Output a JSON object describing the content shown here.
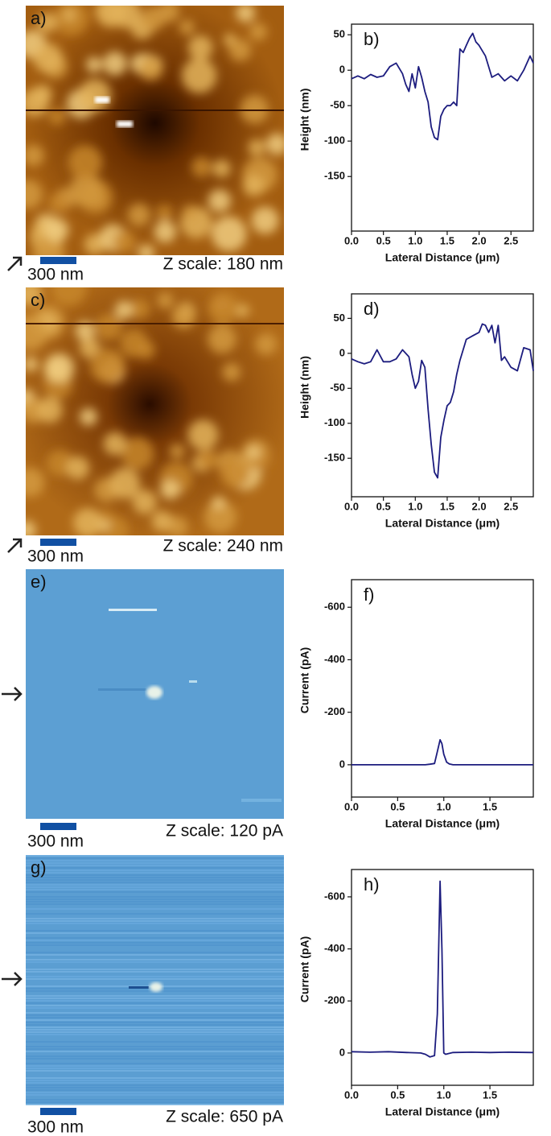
{
  "images": [
    {
      "label": "a)",
      "scale_bar": "300 nm",
      "z_scale": "Z scale: 180 nm"
    },
    {
      "label": "c)",
      "scale_bar": "300 nm",
      "z_scale": "Z scale: 240 nm"
    },
    {
      "label": "e)",
      "scale_bar": "300 nm",
      "z_scale": "Z scale: 120 pA"
    },
    {
      "label": "g)",
      "scale_bar": "300 nm",
      "z_scale": "Z scale: 650 pA"
    }
  ],
  "chart_data": [
    {
      "type": "line",
      "label": "b)",
      "xlabel": "Lateral Distance (μm)",
      "ylabel": "Height (nm)",
      "color": "#1c1c7e",
      "x": [
        0,
        0.1,
        0.2,
        0.3,
        0.4,
        0.5,
        0.6,
        0.7,
        0.8,
        0.85,
        0.9,
        0.95,
        1.0,
        1.05,
        1.1,
        1.15,
        1.2,
        1.25,
        1.3,
        1.35,
        1.4,
        1.45,
        1.5,
        1.55,
        1.6,
        1.65,
        1.7,
        1.75,
        1.8,
        1.85,
        1.9,
        1.95,
        2.0,
        2.1,
        2.2,
        2.3,
        2.4,
        2.5,
        2.6,
        2.7,
        2.8,
        2.85
      ],
      "values": [
        -12,
        -8,
        -12,
        -6,
        -10,
        -8,
        5,
        10,
        -5,
        -20,
        -30,
        -5,
        -25,
        5,
        -10,
        -30,
        -45,
        -80,
        -95,
        -98,
        -65,
        -55,
        -50,
        -50,
        -45,
        -50,
        30,
        25,
        35,
        45,
        52,
        40,
        35,
        20,
        -10,
        -5,
        -15,
        -8,
        -15,
        0,
        20,
        10
      ],
      "xlim": [
        0,
        2.85
      ],
      "ylim": [
        -227,
        65
      ],
      "xticks": [
        {
          "value": 0,
          "label": "0.0"
        },
        0.5,
        {
          "value": 1,
          "label": "1.0"
        },
        1.5,
        {
          "value": 2,
          "label": "2.0"
        },
        2.5
      ],
      "yticks": [
        50,
        0,
        -50,
        -100,
        -150
      ]
    },
    {
      "type": "line",
      "label": "d)",
      "xlabel": "Lateral Distance (μm)",
      "ylabel": "Height (nm)",
      "color": "#1c1c7e",
      "x": [
        0,
        0.1,
        0.2,
        0.3,
        0.4,
        0.5,
        0.6,
        0.7,
        0.8,
        0.9,
        0.95,
        1.0,
        1.05,
        1.1,
        1.15,
        1.2,
        1.25,
        1.3,
        1.35,
        1.4,
        1.45,
        1.5,
        1.55,
        1.6,
        1.65,
        1.7,
        1.8,
        1.9,
        2.0,
        2.05,
        2.1,
        2.15,
        2.2,
        2.25,
        2.3,
        2.35,
        2.4,
        2.5,
        2.6,
        2.7,
        2.8,
        2.85
      ],
      "values": [
        -8,
        -12,
        -15,
        -12,
        5,
        -12,
        -12,
        -8,
        5,
        -5,
        -30,
        -50,
        -40,
        -10,
        -20,
        -80,
        -130,
        -170,
        -178,
        -120,
        -95,
        -75,
        -70,
        -55,
        -30,
        -10,
        20,
        25,
        30,
        42,
        40,
        30,
        40,
        15,
        40,
        -10,
        -5,
        -20,
        -25,
        8,
        5,
        -25
      ],
      "xlim": [
        0,
        2.85
      ],
      "ylim": [
        -205,
        85
      ],
      "xticks": [
        {
          "value": 0,
          "label": "0.0"
        },
        0.5,
        {
          "value": 1,
          "label": "1.0"
        },
        1.5,
        {
          "value": 2,
          "label": "2.0"
        },
        2.5
      ],
      "yticks": [
        50,
        0,
        -50,
        -100,
        -150
      ]
    },
    {
      "type": "line",
      "label": "f)",
      "xlabel": "Lateral Distance (μm)",
      "ylabel": "Current (pA)",
      "color": "#1c1c7e",
      "x": [
        0,
        0.2,
        0.4,
        0.6,
        0.8,
        0.85,
        0.9,
        0.93,
        0.96,
        0.98,
        1.0,
        1.03,
        1.06,
        1.1,
        1.2,
        1.4,
        1.6,
        1.8,
        1.97
      ],
      "values": [
        0,
        0,
        0,
        0,
        0,
        -2,
        -5,
        -50,
        -95,
        -80,
        -40,
        -10,
        -3,
        0,
        0,
        0,
        0,
        0,
        0
      ],
      "xlim": [
        0,
        1.97
      ],
      "ylim": [
        123,
        -705
      ],
      "xticks": [
        {
          "value": 0,
          "label": "0.0"
        },
        0.5,
        {
          "value": 1,
          "label": "1.0"
        },
        1.5
      ],
      "yticks": [
        -600,
        -400,
        -200,
        0
      ]
    },
    {
      "type": "line",
      "label": "h)",
      "xlabel": "Lateral Distance (μm)",
      "ylabel": "Current (pA)",
      "color": "#1c1c7e",
      "x": [
        0,
        0.2,
        0.4,
        0.6,
        0.75,
        0.8,
        0.85,
        0.9,
        0.93,
        0.96,
        0.98,
        1.0,
        1.02,
        1.05,
        1.1,
        1.3,
        1.5,
        1.7,
        1.97
      ],
      "values": [
        -5,
        -3,
        -5,
        -2,
        0,
        5,
        15,
        10,
        -150,
        -660,
        -400,
        0,
        5,
        2,
        -2,
        -3,
        -2,
        -3,
        -2
      ],
      "xlim": [
        0,
        1.97
      ],
      "ylim": [
        124,
        -705
      ],
      "xticks": [
        {
          "value": 0,
          "label": "0.0"
        },
        0.5,
        {
          "value": 1,
          "label": "1.0"
        },
        1.5
      ],
      "yticks": [
        -600,
        -400,
        -200,
        0
      ]
    }
  ]
}
